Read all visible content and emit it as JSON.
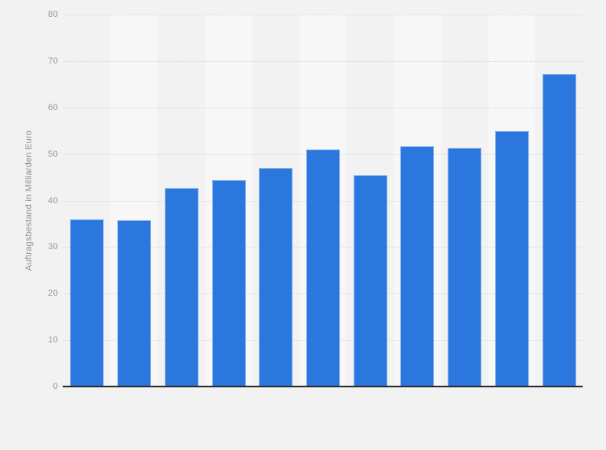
{
  "chart_data": {
    "type": "bar",
    "title": "",
    "xlabel": "",
    "ylabel": "Auftragsbestand in Milliarden Euro",
    "categories": [
      "",
      "",
      "",
      "",
      "",
      "",
      "",
      "",
      "",
      "",
      ""
    ],
    "values": [
      35.9,
      35.7,
      42.7,
      44.4,
      47.0,
      51.0,
      45.5,
      51.6,
      51.3,
      55.0,
      67.2
    ],
    "ylim": [
      0,
      80
    ],
    "yticks": [
      0,
      10,
      20,
      30,
      40,
      50,
      60,
      70,
      80
    ],
    "grid": "horizontal-dotted",
    "legend": "none",
    "colors": {
      "background": "#f2f2f2",
      "plot_band_alt": "#f7f7f7",
      "bar": "#2b77de",
      "gridline": "#d5d5d5",
      "axis_line": "#2b2b2b",
      "tick_text": "#999999",
      "axis_title_text": "#8f8f8f"
    }
  }
}
